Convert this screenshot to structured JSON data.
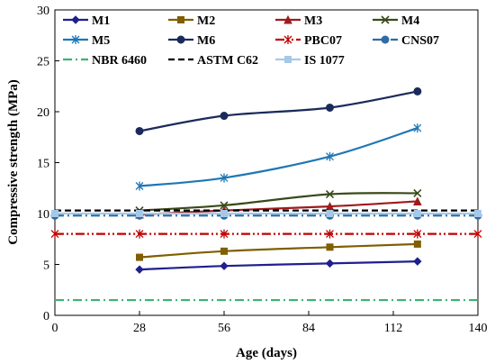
{
  "chart_data": {
    "type": "line",
    "xlabel": "Age (days)",
    "ylabel": "Compressive strength (MPa)",
    "xlim": [
      0,
      140
    ],
    "ylim": [
      0,
      30
    ],
    "xticks": [
      0,
      28,
      56,
      84,
      112,
      140
    ],
    "yticks": [
      0,
      5,
      10,
      15,
      20,
      25,
      30
    ],
    "grid": false,
    "legend_position": "top",
    "series": [
      {
        "name": "M1",
        "color": "#1f1f8f",
        "marker": "diamond",
        "dash": "solid",
        "x": [
          28,
          56,
          91,
          120
        ],
        "y": [
          4.5,
          4.85,
          5.1,
          5.3
        ]
      },
      {
        "name": "M2",
        "color": "#7f5f00",
        "marker": "square",
        "dash": "solid",
        "x": [
          28,
          56,
          91,
          120
        ],
        "y": [
          5.7,
          6.3,
          6.7,
          7.0
        ]
      },
      {
        "name": "M3",
        "color": "#9e1b1b",
        "marker": "triangle",
        "dash": "solid",
        "x": [
          28,
          56,
          91,
          120
        ],
        "y": [
          9.9,
          10.3,
          10.7,
          11.2
        ]
      },
      {
        "name": "M4",
        "color": "#3a4a1a",
        "marker": "x",
        "dash": "solid",
        "x": [
          28,
          56,
          91,
          120
        ],
        "y": [
          10.3,
          10.8,
          11.9,
          12.0
        ]
      },
      {
        "name": "M5",
        "color": "#1f77b4",
        "marker": "star",
        "dash": "solid",
        "x": [
          28,
          56,
          91,
          120
        ],
        "y": [
          12.7,
          13.5,
          15.6,
          18.4
        ]
      },
      {
        "name": "M6",
        "color": "#1a2a5a",
        "marker": "circle",
        "dash": "solid",
        "x": [
          28,
          56,
          91,
          120
        ],
        "y": [
          18.1,
          19.6,
          20.4,
          22.0
        ]
      },
      {
        "name": "PBC07",
        "color": "#c00000",
        "marker": "star",
        "dash": "dashdotdot",
        "x": [
          0,
          28,
          56,
          91,
          120,
          140
        ],
        "y": [
          8.0,
          8.0,
          8.0,
          8.0,
          8.0,
          8.0
        ]
      },
      {
        "name": "CNS07",
        "color": "#2e6da4",
        "marker": "circle",
        "dash": "dashdot",
        "x": [
          0,
          28,
          56,
          91,
          120,
          140
        ],
        "y": [
          9.8,
          9.8,
          9.8,
          9.8,
          9.8,
          9.8
        ]
      },
      {
        "name": "NBR 6460",
        "color": "#3cb371",
        "marker": "none",
        "dash": "dashdot",
        "x": [
          0,
          140
        ],
        "y": [
          1.5,
          1.5
        ]
      },
      {
        "name": "ASTM C62",
        "color": "#000000",
        "marker": "none",
        "dash": "dashed",
        "x": [
          0,
          140
        ],
        "y": [
          10.3,
          10.3
        ]
      },
      {
        "name": "IS 1077",
        "color": "#a6c8e8",
        "marker": "square",
        "dash": "solid",
        "x": [
          0,
          28,
          56,
          91,
          120,
          140
        ],
        "y": [
          10.0,
          10.0,
          10.0,
          10.0,
          10.0,
          10.0
        ]
      }
    ]
  }
}
